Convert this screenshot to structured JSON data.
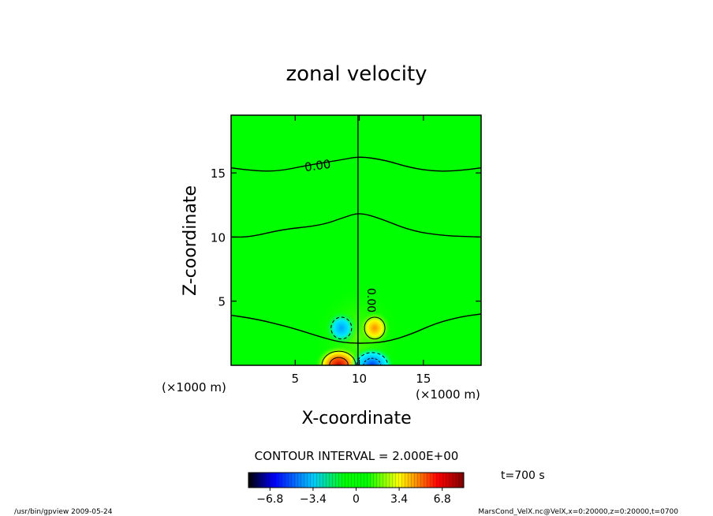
{
  "chart_data": {
    "type": "heatmap",
    "title": "zonal velocity",
    "xlabel": "X-coordinate",
    "ylabel": "Z-coordinate",
    "x_units": "(×1000 m)",
    "z_units": "(×1000 m)",
    "xlim": [
      0,
      19.5
    ],
    "ylim": [
      0,
      19.5
    ],
    "x_ticks": [
      5,
      10,
      15
    ],
    "y_ticks": [
      5,
      10,
      15
    ],
    "contour_interval_text": "CONTOUR INTERVAL = 2.000E+00",
    "time_text": "t=700 s",
    "contour_labels": [
      "0.00",
      "0.00"
    ],
    "colorbar": {
      "ticks": [
        -6.8,
        -3.4,
        0,
        3.4,
        6.8
      ],
      "tick_labels": [
        "−6.8",
        "−3.4",
        "0",
        "3.4",
        "6.8"
      ],
      "range": [
        -8.5,
        8.5
      ]
    },
    "zero_contours": [
      {
        "points": [
          [
            0,
            15.4
          ],
          [
            1.5,
            15.2
          ],
          [
            3.5,
            15.1
          ],
          [
            6,
            15.6
          ],
          [
            8.5,
            16.0
          ],
          [
            10,
            16.3
          ],
          [
            12,
            16.0
          ],
          [
            14,
            15.4
          ],
          [
            16,
            15.1
          ],
          [
            18,
            15.2
          ],
          [
            19.5,
            15.4
          ]
        ]
      },
      {
        "points": [
          [
            0,
            10.0
          ],
          [
            1.5,
            10.0
          ],
          [
            4,
            10.6
          ],
          [
            7,
            10.9
          ],
          [
            9,
            11.6
          ],
          [
            10,
            11.9
          ],
          [
            11.5,
            11.5
          ],
          [
            14,
            10.5
          ],
          [
            16.5,
            10.1
          ],
          [
            19.5,
            10.0
          ]
        ]
      },
      {
        "points": [
          [
            0,
            3.9
          ],
          [
            2,
            3.6
          ],
          [
            4.5,
            3.0
          ],
          [
            7,
            2.2
          ],
          [
            8.5,
            1.8
          ],
          [
            10,
            1.7
          ],
          [
            12,
            1.8
          ],
          [
            14,
            2.4
          ],
          [
            16,
            3.3
          ],
          [
            18,
            3.8
          ],
          [
            19.5,
            4.0
          ]
        ]
      },
      {
        "points": [
          [
            9.9,
            0
          ],
          [
            9.9,
            19.5
          ]
        ]
      }
    ],
    "anomalies": [
      {
        "sign": "negative",
        "x": 8.6,
        "z": 2.9,
        "rx": 0.8,
        "rz": 0.85,
        "peak": -4.0
      },
      {
        "sign": "positive",
        "x": 11.2,
        "z": 2.9,
        "rx": 0.8,
        "rz": 0.85,
        "peak": 4.0
      },
      {
        "sign": "positive",
        "x": 8.4,
        "z": 0.0,
        "rx": 1.2,
        "rz": 1.0,
        "peak": 8.0
      },
      {
        "sign": "negative",
        "x": 11.0,
        "z": 0.0,
        "rx": 1.1,
        "rz": 0.9,
        "peak": -6.0
      }
    ],
    "grid": false
  },
  "footer": {
    "left": "/usr/bin/gpview   2009-05-24",
    "right": "MarsCond_VelX.nc@VelX,x=0:20000,z=0:20000,t=0700"
  }
}
